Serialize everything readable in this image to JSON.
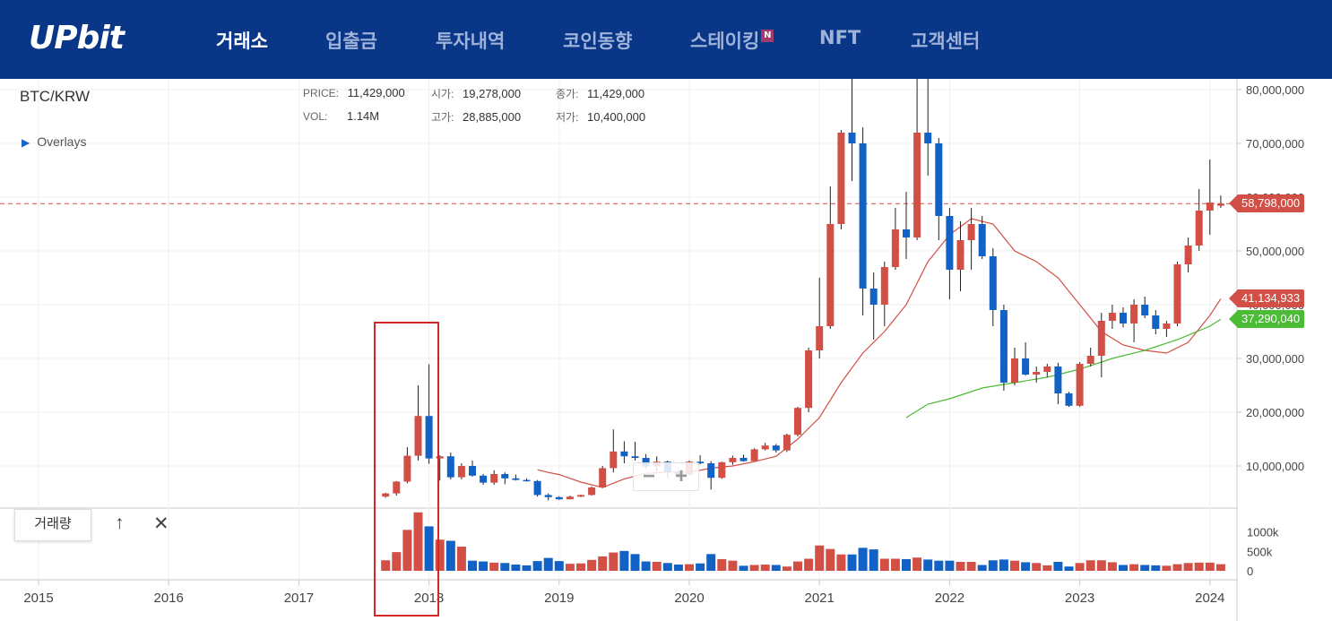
{
  "header": {
    "logo": "UPbit",
    "nav": [
      {
        "label": "거래소",
        "active": true
      },
      {
        "label": "입출금",
        "active": false
      },
      {
        "label": "투자내역",
        "active": false
      },
      {
        "label": "코인동향",
        "active": false
      },
      {
        "label": "스테이킹",
        "active": false,
        "badge": "N"
      },
      {
        "label": "NFT",
        "active": false
      },
      {
        "label": "고객센터",
        "active": false
      }
    ]
  },
  "chart": {
    "pair": "BTC/KRW",
    "overlays_label": "Overlays",
    "info": {
      "price_label": "PRICE:",
      "price": "11,429,000",
      "open_label": "시가:",
      "open": "19,278,000",
      "close_label": "종가:",
      "close": "11,429,000",
      "vol_label": "VOL:",
      "vol": "1.14M",
      "high_label": "고가:",
      "high": "28,885,000",
      "low_label": "저가:",
      "low": "10,400,000"
    },
    "price_tags": {
      "last": "58,798,000",
      "ma_red": "41,134,933",
      "ma_green": "37,290,040"
    },
    "subpanel": {
      "label": "거래량",
      "up_icon": "arrow-up-icon",
      "close_icon": "close-icon"
    },
    "zoom": {
      "minus": "−",
      "plus": "+"
    }
  },
  "chart_data": {
    "type": "candlestick",
    "interval": "monthly",
    "colors": {
      "up": "#d24f45",
      "down": "#1261c4",
      "ma_red": "#d24f45",
      "ma_green": "#4cbb35",
      "last_price_line": "#d24f45"
    },
    "y_ticks": [
      "80,000,000",
      "70,000,000",
      "60,000,000",
      "50,000,000",
      "40,000,000",
      "30,000,000",
      "20,000,000",
      "10,000,000"
    ],
    "x_ticks": [
      "2015",
      "2016",
      "2017",
      "2018",
      "2019",
      "2020",
      "2021",
      "2022",
      "2023",
      "2024"
    ],
    "volume_ticks": [
      "1000k",
      "500k",
      "0"
    ],
    "ohlc": [
      {
        "t": "2017-09",
        "o": 4.3,
        "h": 5.0,
        "l": 4.1,
        "c": 4.9
      },
      {
        "t": "2017-10",
        "o": 4.9,
        "h": 7.2,
        "l": 4.5,
        "c": 7.1
      },
      {
        "t": "2017-11",
        "o": 7.1,
        "h": 13.5,
        "l": 6.8,
        "c": 11.9
      },
      {
        "t": "2017-12",
        "o": 11.9,
        "h": 25.0,
        "l": 11.0,
        "c": 19.3
      },
      {
        "t": "2018-01",
        "o": 19.3,
        "h": 28.9,
        "l": 10.4,
        "c": 11.4
      },
      {
        "t": "2018-02",
        "o": 11.4,
        "h": 12.0,
        "l": 7.3,
        "c": 11.8
      },
      {
        "t": "2018-03",
        "o": 11.8,
        "h": 12.5,
        "l": 7.5,
        "c": 7.9
      },
      {
        "t": "2018-04",
        "o": 7.9,
        "h": 10.5,
        "l": 7.5,
        "c": 10.0
      },
      {
        "t": "2018-05",
        "o": 10.0,
        "h": 11.0,
        "l": 8.0,
        "c": 8.2
      },
      {
        "t": "2018-06",
        "o": 8.2,
        "h": 8.5,
        "l": 6.5,
        "c": 6.9
      },
      {
        "t": "2018-07",
        "o": 6.9,
        "h": 9.2,
        "l": 6.5,
        "c": 8.5
      },
      {
        "t": "2018-08",
        "o": 8.5,
        "h": 8.8,
        "l": 6.6,
        "c": 7.7
      },
      {
        "t": "2018-09",
        "o": 7.7,
        "h": 8.4,
        "l": 7.3,
        "c": 7.4
      },
      {
        "t": "2018-10",
        "o": 7.4,
        "h": 7.7,
        "l": 7.1,
        "c": 7.2
      },
      {
        "t": "2018-11",
        "o": 7.2,
        "h": 7.4,
        "l": 4.3,
        "c": 4.6
      },
      {
        "t": "2018-12",
        "o": 4.6,
        "h": 4.9,
        "l": 3.6,
        "c": 4.2
      },
      {
        "t": "2019-01",
        "o": 4.2,
        "h": 4.4,
        "l": 3.7,
        "c": 3.8
      },
      {
        "t": "2019-02",
        "o": 3.8,
        "h": 4.5,
        "l": 3.8,
        "c": 4.3
      },
      {
        "t": "2019-03",
        "o": 4.3,
        "h": 4.7,
        "l": 4.2,
        "c": 4.6
      },
      {
        "t": "2019-04",
        "o": 4.6,
        "h": 6.2,
        "l": 4.5,
        "c": 6.0
      },
      {
        "t": "2019-05",
        "o": 6.0,
        "h": 10.0,
        "l": 5.9,
        "c": 9.6
      },
      {
        "t": "2019-06",
        "o": 9.6,
        "h": 16.8,
        "l": 8.8,
        "c": 12.7
      },
      {
        "t": "2019-07",
        "o": 12.7,
        "h": 14.6,
        "l": 10.5,
        "c": 11.8
      },
      {
        "t": "2019-08",
        "o": 11.8,
        "h": 14.5,
        "l": 11.0,
        "c": 11.5
      },
      {
        "t": "2019-09",
        "o": 11.5,
        "h": 12.2,
        "l": 9.5,
        "c": 9.9
      },
      {
        "t": "2019-10",
        "o": 9.9,
        "h": 11.8,
        "l": 9.0,
        "c": 10.8
      },
      {
        "t": "2019-11",
        "o": 10.8,
        "h": 11.0,
        "l": 7.8,
        "c": 8.9
      },
      {
        "t": "2019-12",
        "o": 8.9,
        "h": 9.2,
        "l": 7.6,
        "c": 8.4
      },
      {
        "t": "2020-01",
        "o": 8.4,
        "h": 11.0,
        "l": 8.2,
        "c": 10.8
      },
      {
        "t": "2020-02",
        "o": 10.8,
        "h": 12.0,
        "l": 10.3,
        "c": 10.5
      },
      {
        "t": "2020-03",
        "o": 10.5,
        "h": 10.9,
        "l": 5.6,
        "c": 7.8
      },
      {
        "t": "2020-04",
        "o": 7.8,
        "h": 10.8,
        "l": 7.6,
        "c": 10.7
      },
      {
        "t": "2020-05",
        "o": 10.7,
        "h": 11.9,
        "l": 10.2,
        "c": 11.5
      },
      {
        "t": "2020-06",
        "o": 11.5,
        "h": 12.1,
        "l": 10.8,
        "c": 10.9
      },
      {
        "t": "2020-07",
        "o": 10.9,
        "h": 13.3,
        "l": 10.9,
        "c": 13.1
      },
      {
        "t": "2020-08",
        "o": 13.1,
        "h": 14.3,
        "l": 12.9,
        "c": 13.8
      },
      {
        "t": "2020-09",
        "o": 13.8,
        "h": 14.1,
        "l": 12.5,
        "c": 12.9
      },
      {
        "t": "2020-10",
        "o": 12.9,
        "h": 16.0,
        "l": 12.6,
        "c": 15.8
      },
      {
        "t": "2020-11",
        "o": 15.8,
        "h": 21.0,
        "l": 15.5,
        "c": 20.8
      },
      {
        "t": "2020-12",
        "o": 20.8,
        "h": 32.0,
        "l": 20.0,
        "c": 31.5
      },
      {
        "t": "2021-01",
        "o": 31.5,
        "h": 45.0,
        "l": 30.0,
        "c": 36.0
      },
      {
        "t": "2021-02",
        "o": 36.0,
        "h": 62.0,
        "l": 35.5,
        "c": 55.0
      },
      {
        "t": "2021-03",
        "o": 55.0,
        "h": 72.5,
        "l": 54.0,
        "c": 72.0
      },
      {
        "t": "2021-04",
        "o": 72.0,
        "h": 84.0,
        "l": 63.0,
        "c": 70.0
      },
      {
        "t": "2021-05",
        "o": 70.0,
        "h": 73.0,
        "l": 38.0,
        "c": 43.0
      },
      {
        "t": "2021-06",
        "o": 43.0,
        "h": 46.0,
        "l": 33.5,
        "c": 40.0
      },
      {
        "t": "2021-07",
        "o": 40.0,
        "h": 48.0,
        "l": 36.0,
        "c": 47.0
      },
      {
        "t": "2021-08",
        "o": 47.0,
        "h": 58.0,
        "l": 46.5,
        "c": 54.0
      },
      {
        "t": "2021-09",
        "o": 54.0,
        "h": 61.0,
        "l": 48.5,
        "c": 52.5
      },
      {
        "t": "2021-10",
        "o": 52.5,
        "h": 84.0,
        "l": 52.0,
        "c": 72.0
      },
      {
        "t": "2021-11",
        "o": 72.0,
        "h": 84.0,
        "l": 64.0,
        "c": 70.0
      },
      {
        "t": "2021-12",
        "o": 70.0,
        "h": 71.0,
        "l": 52.0,
        "c": 56.5
      },
      {
        "t": "2022-01",
        "o": 56.5,
        "h": 58.0,
        "l": 41.0,
        "c": 46.5
      },
      {
        "t": "2022-02",
        "o": 46.5,
        "h": 55.5,
        "l": 42.5,
        "c": 52.0
      },
      {
        "t": "2022-03",
        "o": 52.0,
        "h": 58.0,
        "l": 46.5,
        "c": 55.0
      },
      {
        "t": "2022-04",
        "o": 55.0,
        "h": 56.5,
        "l": 48.5,
        "c": 49.0
      },
      {
        "t": "2022-05",
        "o": 49.0,
        "h": 50.5,
        "l": 36.0,
        "c": 39.0
      },
      {
        "t": "2022-06",
        "o": 39.0,
        "h": 40.0,
        "l": 24.0,
        "c": 25.5
      },
      {
        "t": "2022-07",
        "o": 25.5,
        "h": 32.0,
        "l": 25.0,
        "c": 30.0
      },
      {
        "t": "2022-08",
        "o": 30.0,
        "h": 33.0,
        "l": 26.8,
        "c": 27.0
      },
      {
        "t": "2022-09",
        "o": 27.0,
        "h": 28.5,
        "l": 25.5,
        "c": 27.5
      },
      {
        "t": "2022-10",
        "o": 27.5,
        "h": 29.0,
        "l": 26.5,
        "c": 28.5
      },
      {
        "t": "2022-11",
        "o": 28.5,
        "h": 29.2,
        "l": 21.5,
        "c": 23.5
      },
      {
        "t": "2022-12",
        "o": 23.5,
        "h": 23.8,
        "l": 21.0,
        "c": 21.2
      },
      {
        "t": "2023-01",
        "o": 21.2,
        "h": 29.3,
        "l": 21.0,
        "c": 29.0
      },
      {
        "t": "2023-02",
        "o": 29.0,
        "h": 32.0,
        "l": 28.5,
        "c": 30.5
      },
      {
        "t": "2023-03",
        "o": 30.5,
        "h": 38.5,
        "l": 26.5,
        "c": 37.0
      },
      {
        "t": "2023-04",
        "o": 37.0,
        "h": 40.0,
        "l": 35.5,
        "c": 38.5
      },
      {
        "t": "2023-05",
        "o": 38.5,
        "h": 39.5,
        "l": 35.8,
        "c": 36.5
      },
      {
        "t": "2023-06",
        "o": 36.5,
        "h": 41.0,
        "l": 33.0,
        "c": 40.0
      },
      {
        "t": "2023-07",
        "o": 40.0,
        "h": 41.5,
        "l": 37.5,
        "c": 38.0
      },
      {
        "t": "2023-08",
        "o": 38.0,
        "h": 39.0,
        "l": 34.5,
        "c": 35.5
      },
      {
        "t": "2023-09",
        "o": 35.5,
        "h": 37.0,
        "l": 34.0,
        "c": 36.5
      },
      {
        "t": "2023-10",
        "o": 36.5,
        "h": 48.0,
        "l": 36.0,
        "c": 47.5
      },
      {
        "t": "2023-11",
        "o": 47.5,
        "h": 52.5,
        "l": 46.0,
        "c": 51.0
      },
      {
        "t": "2023-12",
        "o": 51.0,
        "h": 61.5,
        "l": 50.0,
        "c": 57.5
      },
      {
        "t": "2024-01",
        "o": 57.5,
        "h": 67.0,
        "l": 53.0,
        "c": 59.0
      },
      {
        "t": "2024-02",
        "o": 58.4,
        "h": 60.3,
        "l": 58.0,
        "c": 58.8
      }
    ],
    "volume_k": [
      {
        "t": "2017-09",
        "v": 270
      },
      {
        "t": "2017-10",
        "v": 480
      },
      {
        "t": "2017-11",
        "v": 1050
      },
      {
        "t": "2017-12",
        "v": 1500
      },
      {
        "t": "2018-01",
        "v": 1140
      },
      {
        "t": "2018-02",
        "v": 800
      },
      {
        "t": "2018-03",
        "v": 770
      },
      {
        "t": "2018-04",
        "v": 620
      },
      {
        "t": "2018-05",
        "v": 260
      },
      {
        "t": "2018-06",
        "v": 240
      },
      {
        "t": "2018-07",
        "v": 210
      },
      {
        "t": "2018-08",
        "v": 200
      },
      {
        "t": "2018-09",
        "v": 160
      },
      {
        "t": "2018-10",
        "v": 140
      },
      {
        "t": "2018-11",
        "v": 250
      },
      {
        "t": "2018-12",
        "v": 330
      },
      {
        "t": "2019-01",
        "v": 250
      },
      {
        "t": "2019-02",
        "v": 180
      },
      {
        "t": "2019-03",
        "v": 190
      },
      {
        "t": "2019-04",
        "v": 280
      },
      {
        "t": "2019-05",
        "v": 370
      },
      {
        "t": "2019-06",
        "v": 470
      },
      {
        "t": "2019-07",
        "v": 510
      },
      {
        "t": "2019-08",
        "v": 430
      },
      {
        "t": "2019-09",
        "v": 240
      },
      {
        "t": "2019-10",
        "v": 230
      },
      {
        "t": "2019-11",
        "v": 200
      },
      {
        "t": "2019-12",
        "v": 160
      },
      {
        "t": "2020-01",
        "v": 170
      },
      {
        "t": "2020-02",
        "v": 190
      },
      {
        "t": "2020-03",
        "v": 430
      },
      {
        "t": "2020-04",
        "v": 300
      },
      {
        "t": "2020-05",
        "v": 260
      },
      {
        "t": "2020-06",
        "v": 130
      },
      {
        "t": "2020-07",
        "v": 150
      },
      {
        "t": "2020-08",
        "v": 160
      },
      {
        "t": "2020-09",
        "v": 150
      },
      {
        "t": "2020-10",
        "v": 110
      },
      {
        "t": "2020-11",
        "v": 240
      },
      {
        "t": "2020-12",
        "v": 310
      },
      {
        "t": "2021-01",
        "v": 650
      },
      {
        "t": "2021-02",
        "v": 560
      },
      {
        "t": "2021-03",
        "v": 420
      },
      {
        "t": "2021-04",
        "v": 420
      },
      {
        "t": "2021-05",
        "v": 590
      },
      {
        "t": "2021-06",
        "v": 550
      },
      {
        "t": "2021-07",
        "v": 310
      },
      {
        "t": "2021-08",
        "v": 310
      },
      {
        "t": "2021-09",
        "v": 300
      },
      {
        "t": "2021-10",
        "v": 340
      },
      {
        "t": "2021-11",
        "v": 290
      },
      {
        "t": "2021-12",
        "v": 260
      },
      {
        "t": "2022-01",
        "v": 260
      },
      {
        "t": "2022-02",
        "v": 230
      },
      {
        "t": "2022-03",
        "v": 230
      },
      {
        "t": "2022-04",
        "v": 150
      },
      {
        "t": "2022-05",
        "v": 270
      },
      {
        "t": "2022-06",
        "v": 290
      },
      {
        "t": "2022-07",
        "v": 260
      },
      {
        "t": "2022-08",
        "v": 220
      },
      {
        "t": "2022-09",
        "v": 200
      },
      {
        "t": "2022-10",
        "v": 140
      },
      {
        "t": "2022-11",
        "v": 230
      },
      {
        "t": "2022-12",
        "v": 110
      },
      {
        "t": "2023-01",
        "v": 200
      },
      {
        "t": "2023-02",
        "v": 270
      },
      {
        "t": "2023-03",
        "v": 270
      },
      {
        "t": "2023-04",
        "v": 220
      },
      {
        "t": "2023-05",
        "v": 150
      },
      {
        "t": "2023-06",
        "v": 170
      },
      {
        "t": "2023-07",
        "v": 150
      },
      {
        "t": "2023-08",
        "v": 140
      },
      {
        "t": "2023-09",
        "v": 130
      },
      {
        "t": "2023-10",
        "v": 170
      },
      {
        "t": "2023-11",
        "v": 200
      },
      {
        "t": "2023-12",
        "v": 210
      },
      {
        "t": "2024-01",
        "v": 210
      },
      {
        "t": "2024-02",
        "v": 170
      }
    ],
    "ma_red": [
      {
        "t": "2018-11",
        "v": 9.3
      },
      {
        "t": "2018-12",
        "v": 8.8
      },
      {
        "t": "2019-01",
        "v": 8.4
      },
      {
        "t": "2019-03",
        "v": 7.0
      },
      {
        "t": "2019-05",
        "v": 6.0
      },
      {
        "t": "2019-07",
        "v": 7.6
      },
      {
        "t": "2019-09",
        "v": 8.6
      },
      {
        "t": "2019-11",
        "v": 8.9
      },
      {
        "t": "2020-01",
        "v": 8.8
      },
      {
        "t": "2020-03",
        "v": 9.6
      },
      {
        "t": "2020-05",
        "v": 10.0
      },
      {
        "t": "2020-07",
        "v": 10.8
      },
      {
        "t": "2020-09",
        "v": 11.8
      },
      {
        "t": "2020-11",
        "v": 15.0
      },
      {
        "t": "2021-01",
        "v": 19.0
      },
      {
        "t": "2021-03",
        "v": 25.5
      },
      {
        "t": "2021-05",
        "v": 31.0
      },
      {
        "t": "2021-07",
        "v": 35.0
      },
      {
        "t": "2021-09",
        "v": 40.0
      },
      {
        "t": "2021-11",
        "v": 48.0
      },
      {
        "t": "2022-01",
        "v": 53.0
      },
      {
        "t": "2022-03",
        "v": 56.0
      },
      {
        "t": "2022-05",
        "v": 55.0
      },
      {
        "t": "2022-07",
        "v": 50.0
      },
      {
        "t": "2022-09",
        "v": 48.0
      },
      {
        "t": "2022-11",
        "v": 45.0
      },
      {
        "t": "2023-01",
        "v": 40.0
      },
      {
        "t": "2023-03",
        "v": 35.0
      },
      {
        "t": "2023-05",
        "v": 32.5
      },
      {
        "t": "2023-07",
        "v": 31.5
      },
      {
        "t": "2023-09",
        "v": 31.0
      },
      {
        "t": "2023-11",
        "v": 33.0
      },
      {
        "t": "2024-01",
        "v": 38.0
      },
      {
        "t": "2024-02",
        "v": 41.1
      }
    ],
    "ma_green": [
      {
        "t": "2021-09",
        "v": 19.0
      },
      {
        "t": "2021-11",
        "v": 21.5
      },
      {
        "t": "2022-01",
        "v": 22.5
      },
      {
        "t": "2022-04",
        "v": 24.5
      },
      {
        "t": "2022-07",
        "v": 25.5
      },
      {
        "t": "2022-10",
        "v": 26.5
      },
      {
        "t": "2023-01",
        "v": 28.0
      },
      {
        "t": "2023-04",
        "v": 30.0
      },
      {
        "t": "2023-07",
        "v": 31.5
      },
      {
        "t": "2023-10",
        "v": 33.5
      },
      {
        "t": "2024-01",
        "v": 36.0
      },
      {
        "t": "2024-02",
        "v": 37.3
      }
    ],
    "last_price": 58.8,
    "price_unit": "million KRW"
  }
}
